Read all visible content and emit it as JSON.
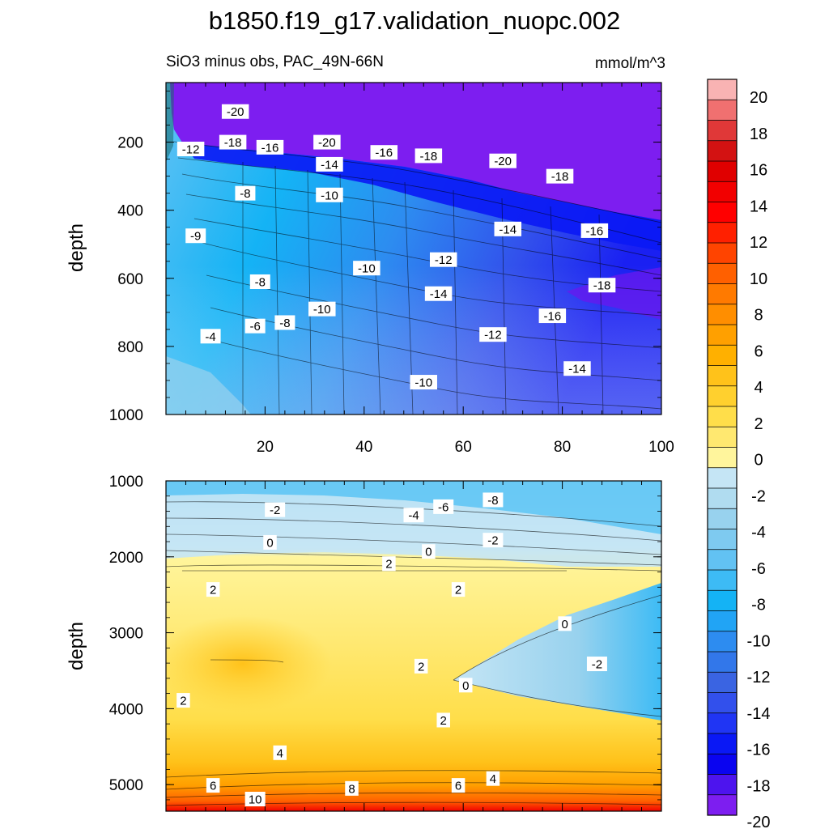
{
  "title": "b1850.f19_g17.validation_nuopc.002",
  "chart_data": {
    "type": "contour",
    "subtitle_left": "SiO3 minus obs, PAC_49N-66N",
    "units": "mmol/m^3",
    "ylabel": "depth",
    "panels": [
      {
        "name": "upper",
        "xlim": [
          0,
          100
        ],
        "ylim": [
          1000,
          25
        ],
        "x_ticks": [
          "20",
          "40",
          "60",
          "80",
          "100"
        ],
        "y_ticks": [
          "200",
          "400",
          "600",
          "800",
          "1000"
        ],
        "contour_labels": [
          {
            "text": "-20",
            "x": 14,
            "y": 110
          },
          {
            "text": "-18",
            "x": 13.5,
            "y": 200
          },
          {
            "text": "-16",
            "x": 21,
            "y": 215
          },
          {
            "text": "-20",
            "x": 32.5,
            "y": 200
          },
          {
            "text": "-16",
            "x": 44,
            "y": 230
          },
          {
            "text": "-18",
            "x": 53,
            "y": 240
          },
          {
            "text": "-20",
            "x": 68,
            "y": 255
          },
          {
            "text": "-18",
            "x": 79.5,
            "y": 300
          },
          {
            "text": "-12",
            "x": 5,
            "y": 220
          },
          {
            "text": "-14",
            "x": 33,
            "y": 265
          },
          {
            "text": "-8",
            "x": 16,
            "y": 350
          },
          {
            "text": "-10",
            "x": 33,
            "y": 355
          },
          {
            "text": "-14",
            "x": 69,
            "y": 455
          },
          {
            "text": "-16",
            "x": 86.5,
            "y": 460
          },
          {
            "text": "-9",
            "x": 6,
            "y": 475
          },
          {
            "text": "-12",
            "x": 56,
            "y": 545
          },
          {
            "text": "-10",
            "x": 40.5,
            "y": 570
          },
          {
            "text": "-8",
            "x": 19,
            "y": 610
          },
          {
            "text": "-14",
            "x": 55,
            "y": 645
          },
          {
            "text": "-18",
            "x": 88,
            "y": 620
          },
          {
            "text": "-10",
            "x": 31.5,
            "y": 690
          },
          {
            "text": "-16",
            "x": 78,
            "y": 710
          },
          {
            "text": "-6",
            "x": 18,
            "y": 740
          },
          {
            "text": "-8",
            "x": 24,
            "y": 730
          },
          {
            "text": "-4",
            "x": 9,
            "y": 770
          },
          {
            "text": "-12",
            "x": 66,
            "y": 765
          },
          {
            "text": "-14",
            "x": 83,
            "y": 865
          },
          {
            "text": "-10",
            "x": 52,
            "y": 905
          }
        ]
      },
      {
        "name": "lower",
        "xlim": [
          0,
          100
        ],
        "ylim": [
          5350,
          1000
        ],
        "y_ticks": [
          "1000",
          "2000",
          "3000",
          "4000",
          "5000"
        ],
        "contour_labels": [
          {
            "text": "-2",
            "x": 22,
            "y": 1380
          },
          {
            "text": "-4",
            "x": 50,
            "y": 1450
          },
          {
            "text": "-6",
            "x": 56,
            "y": 1340
          },
          {
            "text": "-8",
            "x": 66,
            "y": 1250
          },
          {
            "text": "-2",
            "x": 66,
            "y": 1780
          },
          {
            "text": "0",
            "x": 21,
            "y": 1810
          },
          {
            "text": "0",
            "x": 53,
            "y": 1930
          },
          {
            "text": "2",
            "x": 45,
            "y": 2090
          },
          {
            "text": "2",
            "x": 9.5,
            "y": 2430
          },
          {
            "text": "2",
            "x": 59,
            "y": 2430
          },
          {
            "text": "0",
            "x": 80.5,
            "y": 2880
          },
          {
            "text": "-2",
            "x": 87,
            "y": 3410
          },
          {
            "text": "2",
            "x": 51.5,
            "y": 3440
          },
          {
            "text": "0",
            "x": 60.5,
            "y": 3690
          },
          {
            "text": "2",
            "x": 3.5,
            "y": 3890
          },
          {
            "text": "2",
            "x": 56,
            "y": 4150
          },
          {
            "text": "4",
            "x": 23,
            "y": 4580
          },
          {
            "text": "6",
            "x": 9.5,
            "y": 5010
          },
          {
            "text": "4",
            "x": 66,
            "y": 4920
          },
          {
            "text": "6",
            "x": 59,
            "y": 5010
          },
          {
            "text": "8",
            "x": 37.5,
            "y": 5050
          },
          {
            "text": "10",
            "x": 18,
            "y": 5190
          }
        ]
      }
    ],
    "colorbar": {
      "levels": [
        20,
        18,
        16,
        14,
        12,
        10,
        8,
        6,
        4,
        2,
        0,
        -2,
        -4,
        -6,
        -8,
        -10,
        -12,
        -14,
        -16,
        -18,
        -20
      ],
      "labels": [
        "20",
        "18",
        "16",
        "14",
        "12",
        "10",
        "8",
        "6",
        "4",
        "2",
        "0",
        "-2",
        "-4",
        "-6",
        "-8",
        "-10",
        "-12",
        "-14",
        "-16",
        "-18",
        "-20"
      ],
      "colors": [
        "#f9b3b3",
        "#f07070",
        "#e03838",
        "#d31212",
        "#e00000",
        "#f20000",
        "#ff0000",
        "#ff2000",
        "#ff4400",
        "#ff6000",
        "#ff7a00",
        "#ff8e00",
        "#ffa000",
        "#ffb000",
        "#ffc21a",
        "#ffd02e",
        "#ffde4a",
        "#ffe870",
        "#fff59c",
        "#c5e5f5",
        "#b0dcf0",
        "#98d2ee",
        "#7ecaf0",
        "#62c2f3",
        "#3dbbf5",
        "#14b3f5",
        "#21a4f5",
        "#2d8cf0",
        "#3277ea",
        "#3a64e2",
        "#3250ec",
        "#2035f4",
        "#0a18f5",
        "#0a04f0",
        "#4d14ee",
        "#7d1ef0"
      ]
    }
  }
}
